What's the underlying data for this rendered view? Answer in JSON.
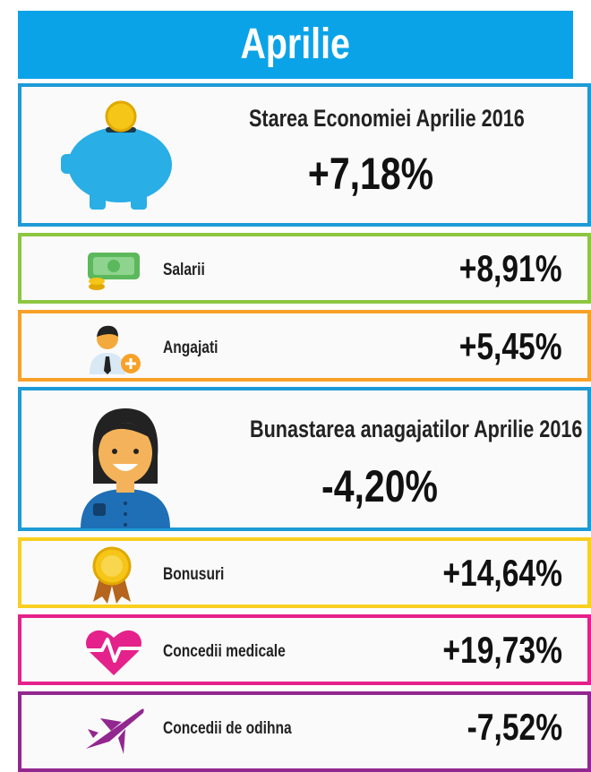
{
  "header": {
    "title": "Aprilie"
  },
  "panels": [
    {
      "label": "Starea Economiei Aprilie 2016",
      "value": "+7,18%"
    },
    {
      "label": "Salarii",
      "value": "+8,91%"
    },
    {
      "label": "Angajati",
      "value": "+5,45%"
    },
    {
      "label": "Bunastarea anagajatilor Aprilie 2016",
      "value": "-4,20%"
    },
    {
      "label": "Bonusuri",
      "value": "+14,64%"
    },
    {
      "label": "Concedii medicale",
      "value": "+19,73%"
    },
    {
      "label": "Concedii de odihna",
      "value": "-7,52%"
    }
  ]
}
